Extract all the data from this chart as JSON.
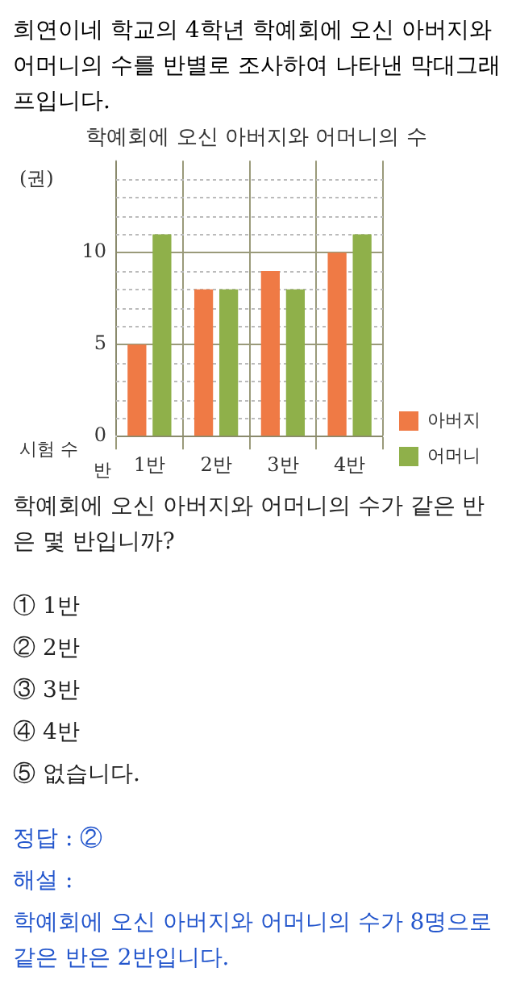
{
  "chart_data": {
    "type": "bar",
    "title": "학예회에 오신 아버지와 어머니의 수",
    "ylabel": "(권)",
    "xlabel": "반",
    "categories": [
      "1반",
      "2반",
      "3반",
      "4반"
    ],
    "series": [
      {
        "name": "아버지",
        "color": "#ef7a45",
        "values": [
          5,
          8,
          9,
          10
        ]
      },
      {
        "name": "어머니",
        "color": "#8fb04a",
        "values": [
          11,
          8,
          8,
          11
        ]
      }
    ],
    "ylim": [
      0,
      15
    ],
    "yticks": [
      0,
      {
        "value": 1,
        "label": null
      },
      {
        "value": 2,
        "label": null
      },
      {
        "value": 3,
        "label": null
      },
      {
        "value": 4,
        "label": null
      },
      5,
      {
        "value": 6,
        "label": null
      },
      {
        "value": 7,
        "label": null
      },
      {
        "value": 8,
        "label": null
      },
      {
        "value": 9,
        "label": null
      },
      10,
      {
        "value": 11,
        "label": null
      },
      {
        "value": 12,
        "label": null
      },
      {
        "value": 13,
        "label": null
      },
      {
        "value": 14,
        "label": null
      }
    ],
    "grid": true,
    "legend": "right",
    "annotations": [
      "희연이네 학교의 4학년 학예회에 오신 아버지와 어머니의 수를 반별로 조사하여 나타낸 막대그래프입니다.",
      "시험 수",
      "학예회에 오신 아버지와 어머니의 수가 같은 반은 몇 반입니까?",
      "① 1반",
      "② 2반",
      "③ 3반",
      "④ 4반",
      "⑤ 없습니다.",
      "정답 : ②",
      "해설 :",
      "학예회에 오신 아버지와 어머니의 수가 8명으로 같은 반은 2반입니다."
    ]
  }
}
